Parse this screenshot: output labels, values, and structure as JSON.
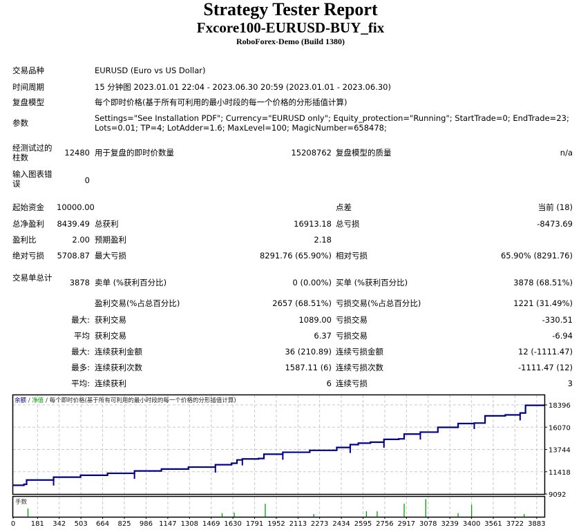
{
  "header": {
    "title": "Strategy Tester Report",
    "expert": "Fxcore100-EURUSD-BUY_fix",
    "server": "RoboForex-Demo (Build 1380)"
  },
  "info": {
    "symbol_label": "交易品种",
    "symbol_value": "EURUSD (Euro vs US Dollar)",
    "period_label": "时间周期",
    "period_value": "15 分钟图 2023.01.01 22:04 - 2023.06.30 20:59 (2023.01.01 - 2023.06.30)",
    "model_label": "复盘模型",
    "model_value": "每个即时价格(基于所有可利用的最小时段的每一个价格的分形插值计算)",
    "params_label": "参数",
    "params_line1": "Settings=\"See Installation PDF\"; Currency=\"EURUSD only\"; Equity_protection=\"Running\"; StartTrade=0; EndTrade=23;",
    "params_line2": "Lots=0.01; TP=4; LotAdder=1.6; MaxLevel=100; MagicNumber=658478;"
  },
  "bars": {
    "bars_label": "经测试过的柱数",
    "bars_value": "12480",
    "ticks_label": "用于复盘的即时价数量",
    "ticks_value": "15208762",
    "quality_label": "复盘模型的质量",
    "quality_value": "n/a",
    "errors_label": "输入图表错误",
    "errors_value": "0"
  },
  "results": {
    "deposit_label": "起始资金",
    "deposit_value": "10000.00",
    "spread_label": "点差",
    "spread_value": "当前 (18)",
    "net_label": "总净盈利",
    "net_value": "8439.49",
    "gross_profit_label": "总获利",
    "gross_profit_value": "16913.18",
    "gross_loss_label": "总亏损",
    "gross_loss_value": "-8473.69",
    "pf_label": "盈利比",
    "pf_value": "2.00",
    "payoff_label": "预期盈利",
    "payoff_value": "2.18",
    "abs_dd_label": "绝对亏损",
    "abs_dd_value": "5708.87",
    "max_dd_label": "最大亏损",
    "max_dd_value": "8291.76 (65.90%)",
    "rel_dd_label": "相对亏损",
    "rel_dd_value": "65.90% (8291.76)"
  },
  "trades": {
    "total_label": "交易单总计",
    "total_value": "3878",
    "short_label": "卖单 (%获利百分比)",
    "short_value": "0 (0.00%)",
    "long_label": "买单 (%获利百分比)",
    "long_value": "3878 (68.51%)",
    "profit_trades_label": "盈利交易(%占总百分比)",
    "profit_trades_value": "2657 (68.51%)",
    "loss_trades_label": "亏损交易(%占总百分比)",
    "loss_trades_value": "1221 (31.49%)",
    "largest_prefix": "最大:",
    "largest_profit_label": "获利交易",
    "largest_profit_value": "1089.00",
    "largest_loss_label": "亏损交易",
    "largest_loss_value": "-330.51",
    "average_prefix": "平均",
    "average_profit_label": "获利交易",
    "average_profit_value": "6.37",
    "average_loss_label": "亏损交易",
    "average_loss_value": "-6.94",
    "max_prefix": "最大:",
    "max_cons_wins_label": "连续获利金额",
    "max_cons_wins_value": "36 (210.89)",
    "max_cons_losses_label": "连续亏损金额",
    "max_cons_losses_value": "12 (-1111.47)",
    "most_prefix": "最多:",
    "most_cons_profit_label": "连续获利次数",
    "most_cons_profit_value": "1587.11 (6)",
    "most_cons_loss_label": "连续亏损次数",
    "most_cons_loss_value": "-1111.47 (12)",
    "avg_prefix": "平均:",
    "avg_cons_wins_label": "连续获利",
    "avg_cons_wins_value": "6",
    "avg_cons_losses_label": "连续亏损",
    "avg_cons_losses_value": "3"
  },
  "chart_data": {
    "type": "line",
    "title": "余额 / 净值 / 每个即时价格(基于所有可利用的最小时段的每一个价格的分形插值计算)",
    "legend": [
      {
        "name": "余额",
        "color": "#00008b"
      },
      {
        "name": "净值",
        "color": "#00a000"
      }
    ],
    "legend_rest": "/ 每个即时价格(基于所有可利用的最小时段的每一个价格的分形插值计算)",
    "xlabel": "",
    "ylabel": "",
    "x_ticks": [
      0,
      181,
      342,
      503,
      664,
      825,
      986,
      1147,
      1308,
      1469,
      1630,
      1791,
      1952,
      2113,
      2273,
      2434,
      2595,
      2756,
      2917,
      3078,
      3239,
      3400,
      3561,
      3722,
      3883
    ],
    "y_ticks": [
      18396,
      16070,
      13744,
      11418,
      9092
    ],
    "ylim": [
      9092,
      19500
    ],
    "xlim": [
      0,
      3940
    ],
    "grid": true,
    "series": [
      {
        "name": "余额",
        "color": "#00008b",
        "x": [
          0,
          80,
          100,
          300,
          500,
          700,
          900,
          1100,
          1300,
          1500,
          1620,
          1660,
          1700,
          1820,
          1860,
          2000,
          2200,
          2400,
          2500,
          2560,
          2650,
          2750,
          2860,
          2900,
          3020,
          3150,
          3300,
          3420,
          3500,
          3650,
          3760,
          3800,
          3940
        ],
        "values": [
          10000,
          10100,
          10550,
          10850,
          11050,
          11250,
          11500,
          11700,
          11900,
          12150,
          12300,
          12650,
          12750,
          12800,
          13250,
          13450,
          13650,
          13950,
          14250,
          14400,
          14500,
          14800,
          14850,
          15350,
          15550,
          16050,
          16450,
          16500,
          17250,
          17350,
          17550,
          18350,
          18450
        ]
      }
    ],
    "volume_panel": {
      "label": "手数",
      "color": "#00a000",
      "bars": [
        {
          "x": 110,
          "h": 0.45
        },
        {
          "x": 1550,
          "h": 0.2
        },
        {
          "x": 1640,
          "h": 0.22
        },
        {
          "x": 1870,
          "h": 0.7
        },
        {
          "x": 2230,
          "h": 0.15
        },
        {
          "x": 2620,
          "h": 0.3
        },
        {
          "x": 2700,
          "h": 0.3
        },
        {
          "x": 2900,
          "h": 0.7
        },
        {
          "x": 3060,
          "h": 0.95
        },
        {
          "x": 3300,
          "h": 0.2
        },
        {
          "x": 3400,
          "h": 0.65
        },
        {
          "x": 3790,
          "h": 0.15
        }
      ]
    }
  }
}
